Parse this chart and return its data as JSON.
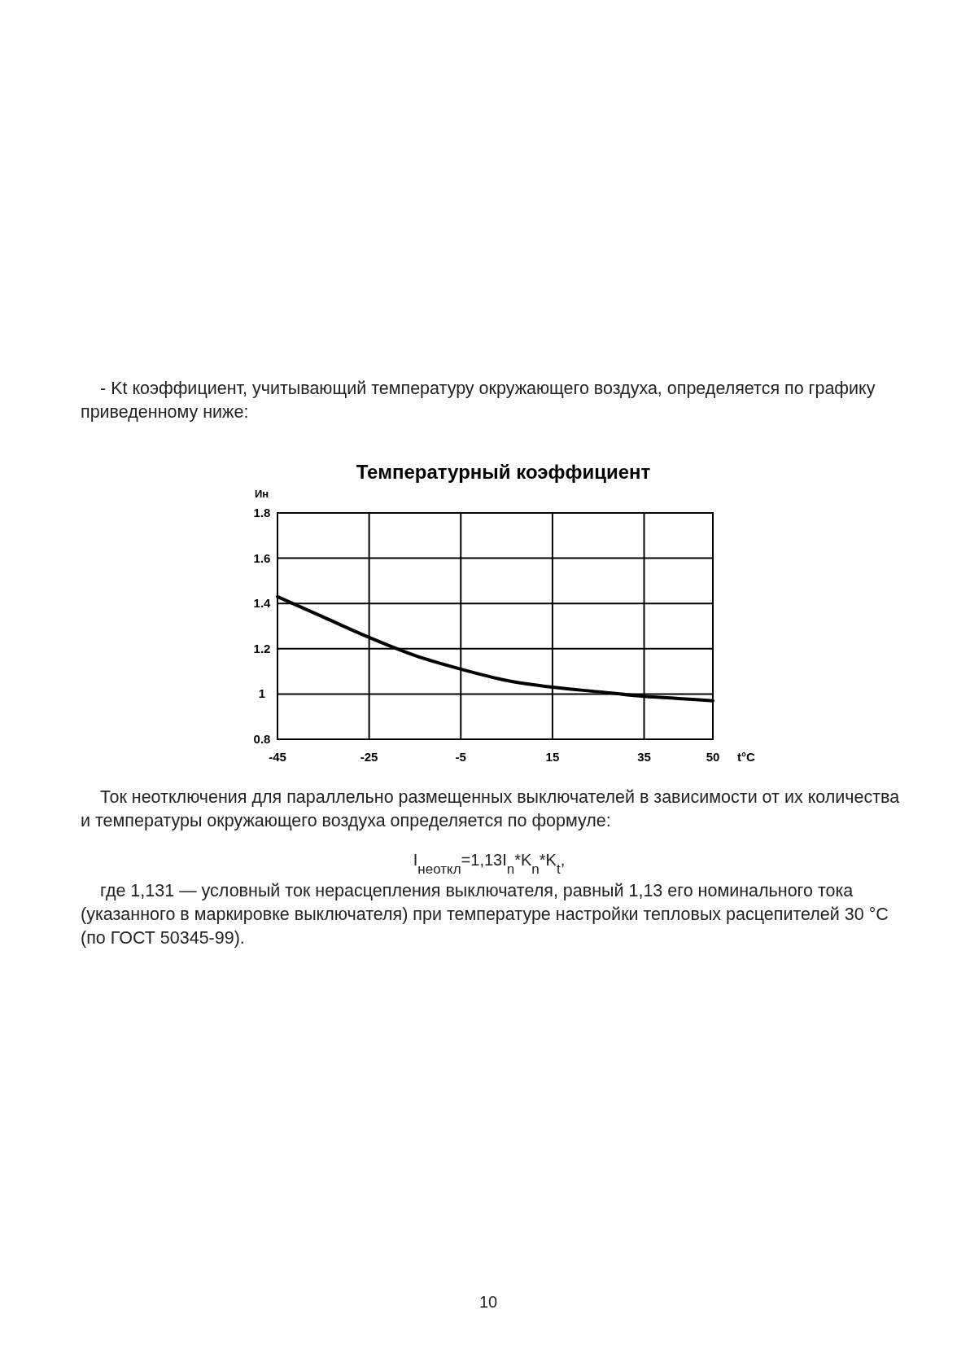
{
  "chart_data": {
    "type": "line",
    "title": "Температурный коэффициент",
    "xlabel": "t°C",
    "ylabel": "Ин",
    "x": [
      -45,
      -35,
      -25,
      -15,
      -5,
      5,
      15,
      25,
      35,
      42.5,
      50
    ],
    "series": [
      {
        "color": "#000000",
        "values": [
          1.43,
          1.34,
          1.25,
          1.17,
          1.11,
          1.06,
          1.03,
          1.01,
          0.99,
          0.98,
          0.97
        ]
      }
    ],
    "xlim": [
      -45,
      50
    ],
    "xticks": [
      -45,
      -25,
      -5,
      15,
      35,
      50
    ],
    "ylim": [
      0.8,
      1.8
    ],
    "yticks": [
      0.8,
      1,
      1.2,
      1.4,
      1.6,
      1.8
    ],
    "grid": true,
    "marker": "none",
    "line_style": "solid",
    "annotations": [
      "- Kt коэффициент, учитывающий температуру окружающего воздуха, определяется по графику приведенному ниже:",
      "Ток неотключения для параллельно размещенных выключателей в зависимости от их количества и температуры окружающего воздуха определяется по формуле:",
      "I$_{неоткл}$=1,13I$_{n}$*K$_{n}$*K$_{t}$,",
      "где 1,131 — условный ток нерасцепления выключателя, равный 1,13 его номинального тока (указанного в маркировке выключателя) при температуре настройки тепловых расцепителей 30 °C (по ГОСТ 50345-99).",
      "10"
    ]
  }
}
